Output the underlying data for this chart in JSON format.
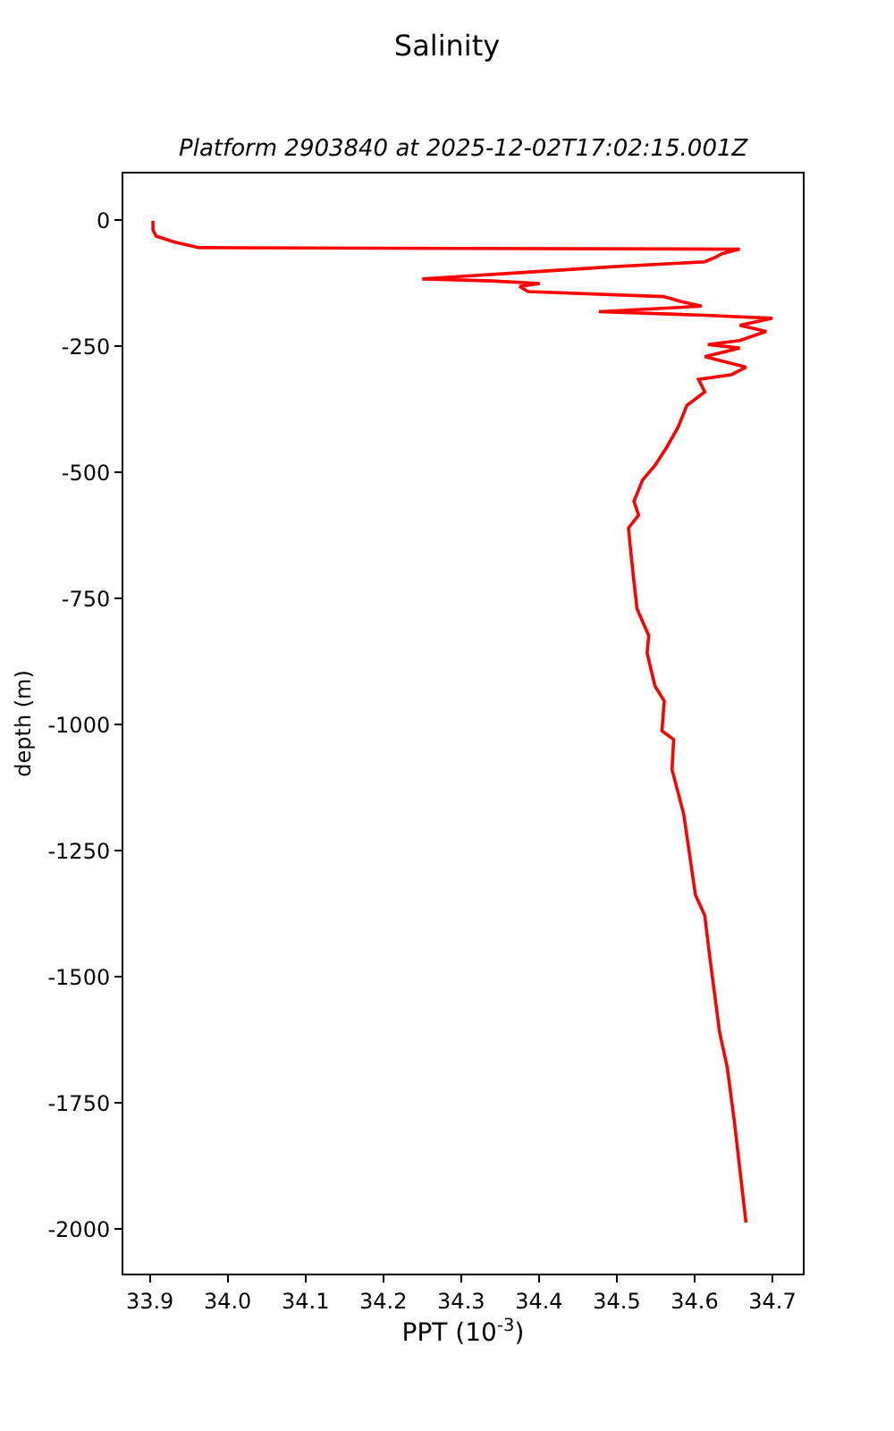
{
  "chart_data": {
    "type": "line",
    "title": "Salinity",
    "subtitle": "Platform 2903840 at 2025-12-02T17:02:15.001Z",
    "xlabel": "PPT (10$^{-3}$)",
    "ylabel": "depth (m)",
    "xlim": [
      33.866,
      34.739
    ],
    "ylim": [
      -2088,
      93
    ],
    "xticks": [
      33.9,
      {
        "value": 34.0,
        "label": "34.0"
      },
      34.1,
      34.2,
      34.3,
      34.4,
      34.5,
      34.6,
      34.7
    ],
    "yticks": [
      0,
      -250,
      -500,
      -750,
      -1000,
      -1250,
      -1500,
      -1750,
      -2000
    ],
    "line_style": "solid",
    "series": [
      {
        "color": "#ff0000",
        "x": [
          33.904,
          33.904,
          33.908,
          33.932,
          33.955,
          33.963,
          34.658,
          34.635,
          34.628,
          34.613,
          34.492,
          34.371,
          34.25,
          34.34,
          34.401,
          34.375,
          34.386,
          34.56,
          34.583,
          34.609,
          34.477,
          34.613,
          34.7,
          34.658,
          34.692,
          34.658,
          34.617,
          34.658,
          34.613,
          34.666,
          34.647,
          34.605,
          34.613,
          34.59,
          34.579,
          34.564,
          34.549,
          34.533,
          34.522,
          34.528,
          34.515,
          34.518,
          34.522,
          34.526,
          34.541,
          34.539,
          34.549,
          34.561,
          34.558,
          34.573,
          34.571,
          34.586,
          34.601,
          34.613,
          34.62,
          34.628,
          34.632,
          34.642,
          34.651,
          34.666
        ],
        "values": [
          -1,
          -19,
          -31,
          -43,
          -51,
          -54,
          -57,
          -66,
          -72,
          -82,
          -92,
          -104,
          -116,
          -120,
          -125,
          -131,
          -141,
          -151,
          -161,
          -170,
          -181,
          -188,
          -194,
          -208,
          -220,
          -238,
          -246,
          -253,
          -270,
          -291,
          -306,
          -315,
          -340,
          -367,
          -409,
          -450,
          -486,
          -515,
          -557,
          -584,
          -610,
          -657,
          -716,
          -770,
          -823,
          -858,
          -923,
          -953,
          -1012,
          -1029,
          -1089,
          -1177,
          -1337,
          -1378,
          -1467,
          -1561,
          -1609,
          -1680,
          -1786,
          -1987
        ]
      }
    ]
  }
}
